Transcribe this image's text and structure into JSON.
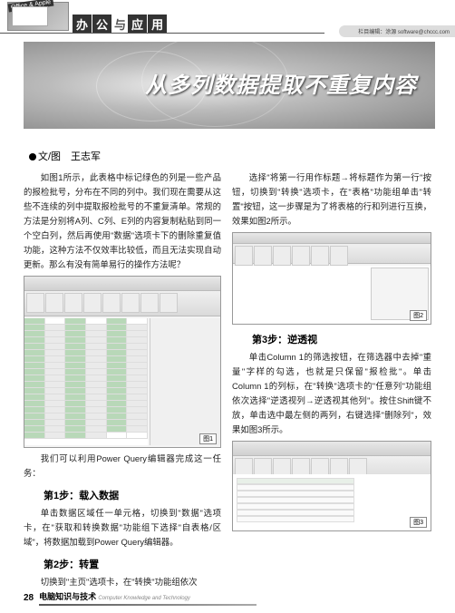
{
  "header": {
    "icon_tag": "Office & Apple",
    "category_chars": [
      "办",
      "公",
      "与",
      "应",
      "用"
    ],
    "contact": "栏目编辑：涂源 software@chccc.com"
  },
  "hero": {
    "title": "从多列数据提取不重复内容"
  },
  "author": {
    "label": "文/图　王志军"
  },
  "body": {
    "p1": "如图1所示，此表格中标记绿色的列是一些产品的报检批号，分布在不同的列中。我们现在需要从这些不连续的列中提取报检批号的不重复清单。常规的方法是分别将A列、C列、E列的内容复制粘贴到同一个空白列，然后再使用\"数据\"选项卡下的删除重复值功能，这种方法不仅效率比较低，而且无法实现自动更新。那么有没有简单易行的操作方法呢？",
    "p1_after": "我们可以利用Power Query编辑器完成这一任务：",
    "step1_title": "第1步：载入数据",
    "step1_body": "单击数据区域任一单元格，切换到\"数据\"选项卡，在\"获取和转换数据\"功能组下选择\"自表格/区域\"，将数据加载到Power Query编辑器。",
    "step2_title": "第2步：转置",
    "step2_body": "切换到\"主页\"选项卡，在\"转换\"功能组依次",
    "p2_right": "选择\"将第一行用作标题→将标题作为第一行\"按钮，切换到\"转换\"选项卡，在\"表格\"功能组单击\"转置\"按钮，这一步骤是为了将表格的行和列进行互换，效果如图2所示。",
    "step3_title": "第3步：逆透视",
    "step3_body": "单击Column 1的筛选按钮，在筛选器中去掉\"重量\"字样的勾选，也就是只保留\"报检批\"。单击Column 1的列标，在\"转换\"选项卡的\"任意列\"功能组依次选择\"逆透视列→逆透视其他列\"。按住Shift键不放，单击选中最左侧的两列，右键选择\"删除列\"，效果如图3所示。"
  },
  "figures": {
    "fig1": "图1",
    "fig2": "图2",
    "fig3": "图3"
  },
  "footer": {
    "page": "28",
    "title_cn": "电脑知识与技术",
    "title_en": "Computer Knowledge and Technology"
  },
  "colors": {
    "accent_green": "#b8d8b8",
    "dark": "#333333",
    "grid": "#dddddd"
  }
}
